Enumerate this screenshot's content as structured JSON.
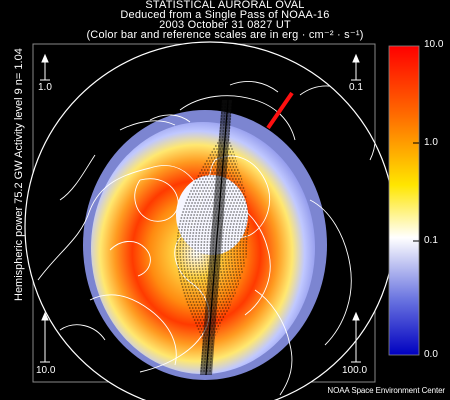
{
  "header": {
    "line1": "STATISTICAL AURORAL OVAL",
    "line2": "Deduced from a Single Pass of NOAA-16",
    "line3": "2003 October 31 0827 UT",
    "line4": "(Color bar and reference scales are in erg · cm⁻² · s⁻¹)"
  },
  "side_label": "Hemispheric power 75.2 GW   Activity level  9   n= 1.04",
  "colorbar": {
    "ticks": [
      "10.0",
      "1.0",
      "0.1",
      "0.0"
    ],
    "colors": [
      "#ff0000",
      "#ff8c00",
      "#ffe600",
      "#ffffff",
      "#4a5ad8",
      "#0000c0"
    ]
  },
  "reference_scales": {
    "top_left": "1.0",
    "top_right": "0.1",
    "bottom_left": "10.0",
    "bottom_right": "100.0"
  },
  "footer": "NOAA Space Environment Center",
  "icons": [
    "reference-arrow-icon",
    "sun-direction-icon"
  ]
}
